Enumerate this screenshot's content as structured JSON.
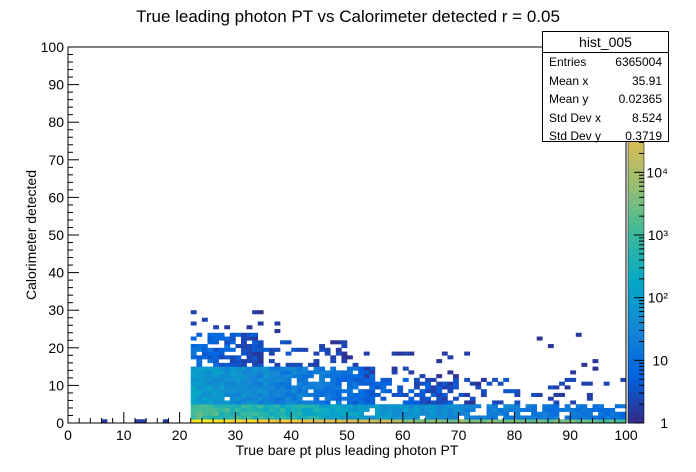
{
  "chart_data": {
    "type": "heatmap",
    "title": "True leading photon PT vs Calorimeter detected r = 0.05",
    "xlabel": "True bare pt plus leading photon PT",
    "ylabel": "Calorimeter detected",
    "xlim": [
      0,
      100
    ],
    "ylim": [
      0,
      100
    ],
    "x_ticks": [
      "0",
      "10",
      "20",
      "30",
      "40",
      "50",
      "60",
      "70",
      "80",
      "90",
      "100"
    ],
    "y_ticks": [
      "0",
      "10",
      "20",
      "30",
      "40",
      "50",
      "60",
      "70",
      "80",
      "90",
      "100"
    ],
    "z_scale": "log",
    "zlim": [
      1,
      1000000
    ],
    "colorbar_ticks": [
      "1",
      "10",
      "10²",
      "10³",
      "10⁴"
    ],
    "colormap": [
      "#352a87",
      "#0363e1",
      "#1485d4",
      "#06a7c6",
      "#38b99e",
      "#92bf73",
      "#d9ba56",
      "#fcce2e",
      "#f9fb0e"
    ],
    "grid": false,
    "bin_width_x": 1,
    "bin_height_y": 1,
    "regions": [
      {
        "x_range": [
          0,
          22
        ],
        "y_range": [
          0,
          1
        ],
        "count_range": [
          1,
          3
        ],
        "fill": 0.25
      },
      {
        "x_range": [
          22,
          34
        ],
        "y_range": [
          0,
          1
        ],
        "count_range": [
          100000,
          1000000
        ],
        "fill": 1.0
      },
      {
        "x_range": [
          34,
          60
        ],
        "y_range": [
          0,
          1
        ],
        "count_range": [
          10000,
          200000
        ],
        "fill": 1.0
      },
      {
        "x_range": [
          60,
          100
        ],
        "y_range": [
          0,
          1
        ],
        "count_range": [
          1000,
          10000
        ],
        "fill": 1.0
      },
      {
        "x_range": [
          22,
          45
        ],
        "y_range": [
          1,
          5
        ],
        "count_range": [
          100,
          3000
        ],
        "fill": 1.0
      },
      {
        "x_range": [
          45,
          70
        ],
        "y_range": [
          1,
          5
        ],
        "count_range": [
          20,
          300
        ],
        "fill": 0.95
      },
      {
        "x_range": [
          70,
          100
        ],
        "y_range": [
          1,
          5
        ],
        "count_range": [
          5,
          60
        ],
        "fill": 0.8
      },
      {
        "x_range": [
          22,
          40
        ],
        "y_range": [
          5,
          15
        ],
        "count_range": [
          10,
          200
        ],
        "fill": 0.98
      },
      {
        "x_range": [
          40,
          55
        ],
        "y_range": [
          5,
          15
        ],
        "count_range": [
          3,
          40
        ],
        "fill": 0.85
      },
      {
        "x_range": [
          55,
          75
        ],
        "y_range": [
          5,
          12
        ],
        "count_range": [
          1,
          10
        ],
        "fill": 0.45
      },
      {
        "x_range": [
          75,
          100
        ],
        "y_range": [
          5,
          12
        ],
        "count_range": [
          1,
          5
        ],
        "fill": 0.15
      },
      {
        "x_range": [
          22,
          35
        ],
        "y_range": [
          15,
          24
        ],
        "count_range": [
          1,
          20
        ],
        "fill": 0.7
      },
      {
        "x_range": [
          35,
          52
        ],
        "y_range": [
          15,
          22
        ],
        "count_range": [
          1,
          5
        ],
        "fill": 0.35
      },
      {
        "x_range": [
          52,
          75
        ],
        "y_range": [
          12,
          20
        ],
        "count_range": [
          1,
          3
        ],
        "fill": 0.1
      },
      {
        "x_range": [
          22,
          38
        ],
        "y_range": [
          24,
          30
        ],
        "count_range": [
          1,
          3
        ],
        "fill": 0.15
      },
      {
        "x_range": [
          75,
          100
        ],
        "y_range": [
          12,
          24
        ],
        "count_range": [
          1,
          2
        ],
        "fill": 0.03
      }
    ],
    "stats_box": {
      "name": "hist_005",
      "rows": [
        {
          "label": "Entries",
          "value": "6365004"
        },
        {
          "label": "Mean x",
          "value": "35.91"
        },
        {
          "label": "Mean y",
          "value": "0.02365"
        },
        {
          "label": "Std Dev x",
          "value": "8.524"
        },
        {
          "label": "Std Dev y",
          "value": "0.3719"
        }
      ]
    }
  }
}
